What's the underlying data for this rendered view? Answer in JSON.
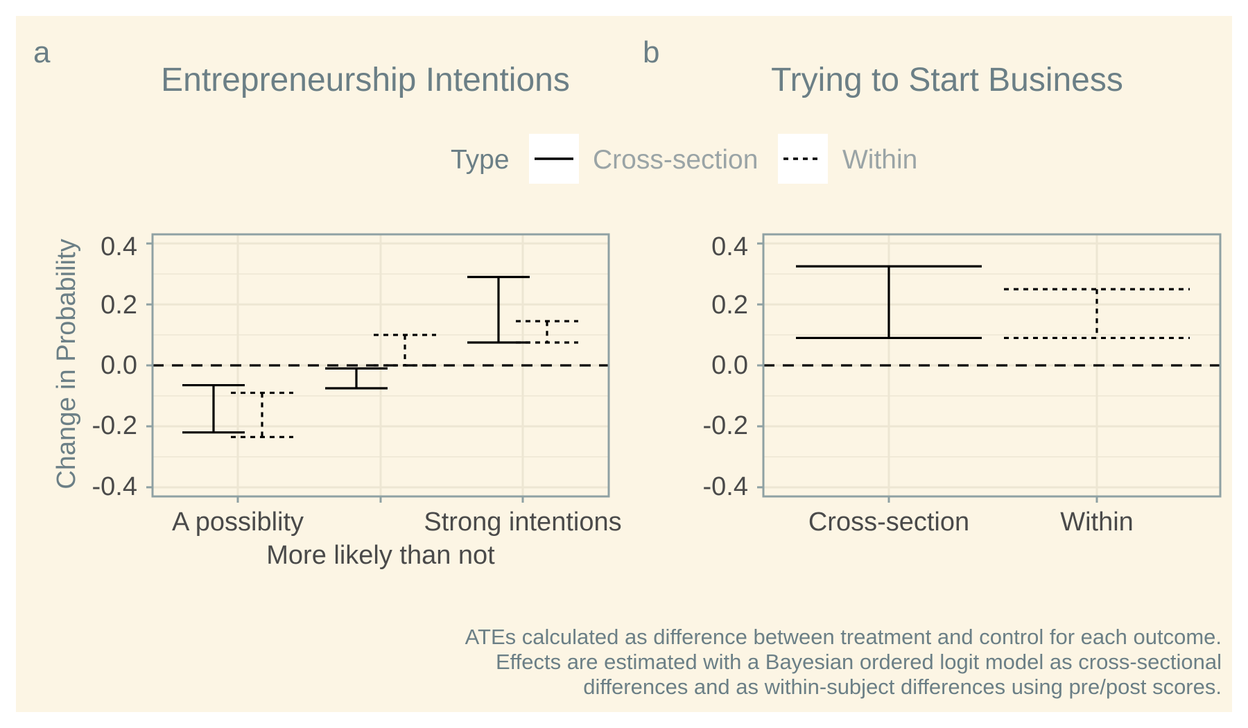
{
  "panels": [
    {
      "tag": "a",
      "title": "Entrepreneurship Intentions",
      "y_axis_title": "Change in Probability",
      "x_tick_labels": [
        "A possiblity",
        "More likely than not",
        "Strong intentions"
      ]
    },
    {
      "tag": "b",
      "title": "Trying to Start Business",
      "x_tick_labels": [
        "Cross-section",
        "Within"
      ]
    }
  ],
  "y_tick_labels": [
    "0.4",
    "0.2",
    "0.0",
    "-0.2",
    "-0.4"
  ],
  "legend": {
    "title": "Type",
    "items": [
      {
        "label": "Cross-section",
        "linetype": "solid"
      },
      {
        "label": "Within",
        "linetype": "dotted"
      }
    ]
  },
  "caption": [
    "ATEs calculated as difference between treatment and control for each outcome.",
    "Effects are estimated with a Bayesian ordered logit model as cross-sectional",
    "differences and as within-subject differences using pre/post scores."
  ],
  "colors": {
    "background": "#fcf5e4",
    "panel_border": "#8fa1a3",
    "grid": "#ede6d3",
    "text": "#6b7f86",
    "ink": "#000000"
  },
  "chart_data": [
    {
      "type": "errorbar",
      "title": "Entrepreneurship Intentions",
      "xlabel": "",
      "ylabel": "Change in Probability",
      "ylim": [
        -0.43,
        0.43
      ],
      "y_ticks": [
        -0.4,
        -0.2,
        0.0,
        0.2,
        0.4
      ],
      "categories": [
        "A possiblity",
        "More likely than not",
        "Strong intentions"
      ],
      "reference_line_y": 0,
      "grid": true,
      "legend_position": "top",
      "series": [
        {
          "name": "Cross-section",
          "linetype": "solid",
          "lower": [
            -0.22,
            -0.075,
            0.075
          ],
          "upper": [
            -0.065,
            -0.01,
            0.29
          ]
        },
        {
          "name": "Within",
          "linetype": "dotted",
          "lower": [
            -0.235,
            0.0,
            0.075
          ],
          "upper": [
            -0.09,
            0.1,
            0.145
          ]
        }
      ]
    },
    {
      "type": "errorbar",
      "title": "Trying to Start Business",
      "xlabel": "",
      "ylabel": "",
      "ylim": [
        -0.43,
        0.43
      ],
      "y_ticks": [
        -0.4,
        -0.2,
        0.0,
        0.2,
        0.4
      ],
      "categories": [
        "Cross-section",
        "Within"
      ],
      "reference_line_y": 0,
      "grid": true,
      "legend_position": "top",
      "series": [
        {
          "name": "Cross-section",
          "linetype": "solid",
          "lower": [
            0.09
          ],
          "upper": [
            0.325
          ]
        },
        {
          "name": "Within",
          "linetype": "dotted",
          "lower": [
            0.09
          ],
          "upper": [
            0.25
          ]
        }
      ]
    }
  ]
}
